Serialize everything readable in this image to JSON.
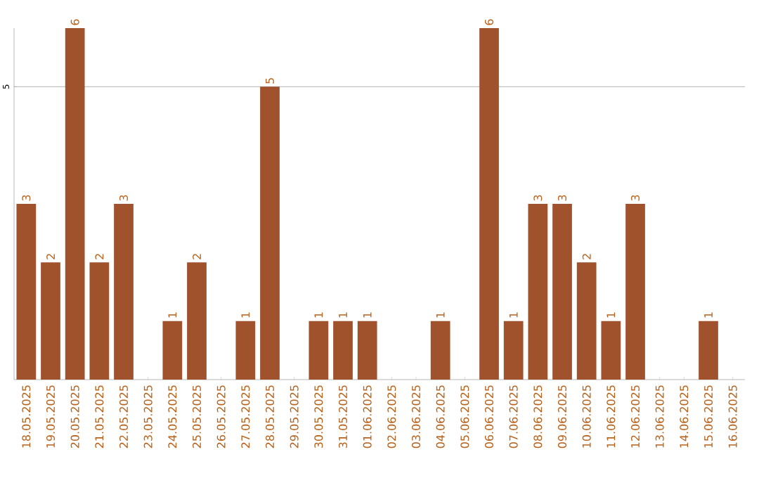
{
  "chart_data": {
    "type": "bar",
    "categories": [
      "18.05.2025",
      "19.05.2025",
      "20.05.2025",
      "21.05.2025",
      "22.05.2025",
      "23.05.2025",
      "24.05.2025",
      "25.05.2025",
      "26.05.2025",
      "27.05.2025",
      "28.05.2025",
      "29.05.2025",
      "30.05.2025",
      "31.05.2025",
      "01.06.2025",
      "02.06.2025",
      "03.06.2025",
      "04.06.2025",
      "05.06.2025",
      "06.06.2025",
      "07.06.2025",
      "08.06.2025",
      "09.06.2025",
      "10.06.2025",
      "11.06.2025",
      "12.06.2025",
      "13.06.2025",
      "14.06.2025",
      "15.06.2025",
      "16.06.2025"
    ],
    "values": [
      3,
      2,
      6,
      2,
      3,
      0,
      1,
      2,
      0,
      1,
      5,
      0,
      1,
      1,
      1,
      0,
      0,
      1,
      0,
      6,
      1,
      3,
      3,
      2,
      1,
      3,
      0,
      0,
      1,
      0
    ],
    "value_labels": [
      "3",
      "2",
      "6",
      "2",
      "3",
      null,
      "1",
      "2",
      null,
      "1",
      "5",
      null,
      "1",
      "1",
      "1",
      null,
      null,
      "1",
      null,
      "6",
      "1",
      "3",
      "3",
      "2",
      "1",
      "3",
      null,
      null,
      "1",
      null
    ],
    "color": "#a0522d",
    "ylim": [
      0,
      6
    ],
    "yticks": [
      5
    ],
    "grid": "y"
  }
}
